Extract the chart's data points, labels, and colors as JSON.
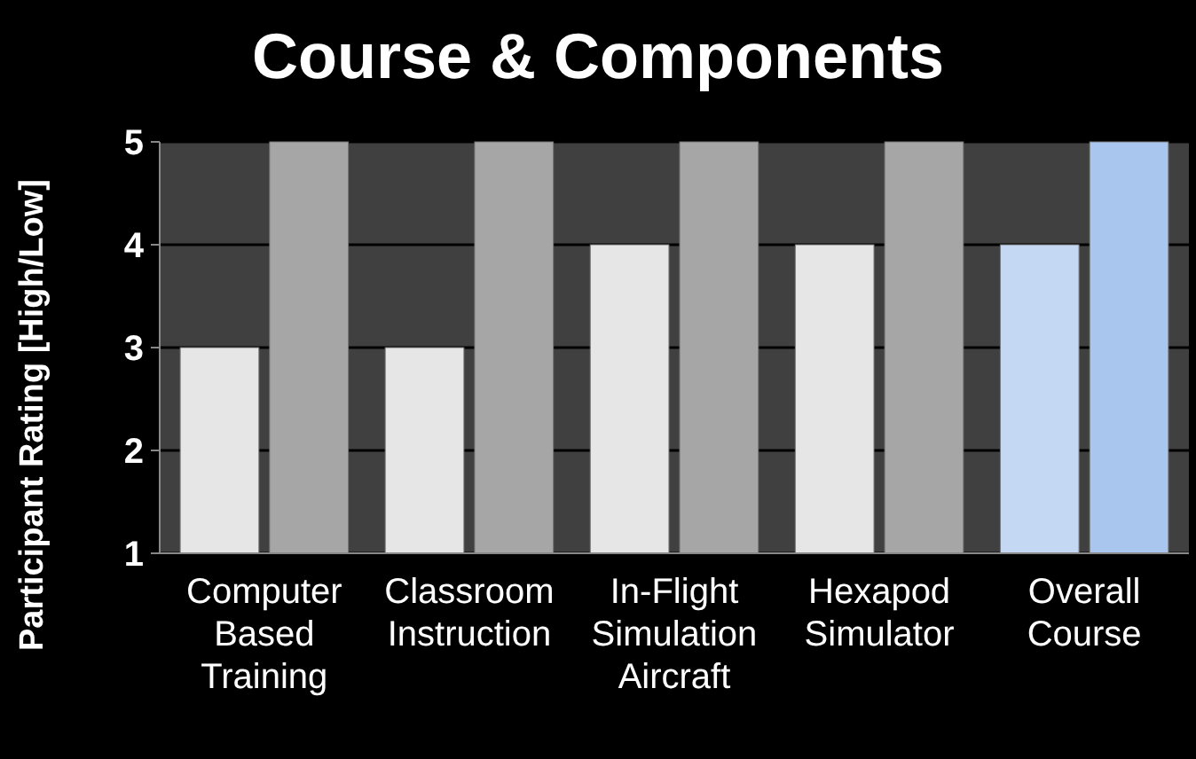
{
  "chart_data": {
    "type": "bar",
    "title": "Course & Components",
    "ylabel": "Participant Rating  [High/Low]",
    "categories": [
      "Computer Based Training",
      "Classroom Instruction",
      "In-Flight Simulation Aircraft",
      "Hexapod Simulator",
      "Overall Course"
    ],
    "series": [
      {
        "colors": [
          "#e6e6e6",
          "#e6e6e6",
          "#e6e6e6",
          "#e6e6e6",
          "#c4d8f4"
        ],
        "values": [
          3,
          3,
          4,
          4,
          4
        ]
      },
      {
        "colors": [
          "#a6a6a6",
          "#a6a6a6",
          "#a6a6a6",
          "#a6a6a6",
          "#a9c6ee"
        ],
        "values": [
          5,
          5,
          5,
          5,
          5
        ]
      }
    ],
    "ylim": [
      1,
      5
    ],
    "yticks": [
      1,
      2,
      3,
      4,
      5
    ],
    "grid": "y"
  }
}
